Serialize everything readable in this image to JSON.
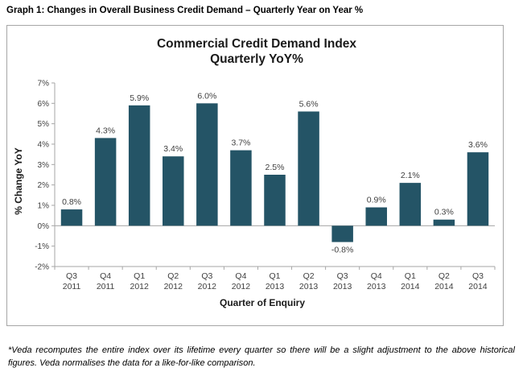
{
  "heading": "Graph 1: Changes in Overall Business Credit Demand – Quarterly Year on Year %",
  "footnote": "*Veda recomputes the entire index over its lifetime every quarter so there will be a slight adjustment to the above historical figures. Veda normalises the data for a like-for-like comparison.",
  "colors": {
    "bar": "#245466",
    "axis": "#a6a6a6",
    "text": "#404040",
    "title": "#1a1a1a"
  },
  "chart_data": {
    "type": "bar",
    "title": "Commercial Credit Demand Index",
    "subtitle": "Quarterly YoY%",
    "xlabel": "Quarter of Enquiry",
    "ylabel": "% Change YoY",
    "ylim": [
      -2,
      7
    ],
    "yticks": [
      "-2%",
      "-1%",
      "0%",
      "1%",
      "2%",
      "3%",
      "4%",
      "5%",
      "6%",
      "7%"
    ],
    "ytick_values": [
      -2,
      -1,
      0,
      1,
      2,
      3,
      4,
      5,
      6,
      7
    ],
    "grid": false,
    "legend": "none",
    "categories": [
      [
        "Q3",
        "2011"
      ],
      [
        "Q4",
        "2011"
      ],
      [
        "Q1",
        "2012"
      ],
      [
        "Q2",
        "2012"
      ],
      [
        "Q3",
        "2012"
      ],
      [
        "Q4",
        "2012"
      ],
      [
        "Q1",
        "2013"
      ],
      [
        "Q2",
        "2013"
      ],
      [
        "Q3",
        "2013"
      ],
      [
        "Q4",
        "2013"
      ],
      [
        "Q1",
        "2014"
      ],
      [
        "Q2",
        "2014"
      ],
      [
        "Q3",
        "2014"
      ]
    ],
    "values": [
      0.8,
      4.3,
      5.9,
      3.4,
      6.0,
      3.7,
      2.5,
      5.6,
      -0.8,
      0.9,
      2.1,
      0.3,
      3.6
    ],
    "data_labels": [
      "0.8%",
      "4.3%",
      "5.9%",
      "3.4%",
      "6.0%",
      "3.7%",
      "2.5%",
      "5.6%",
      "-0.8%",
      "0.9%",
      "2.1%",
      "0.3%",
      "3.6%"
    ]
  }
}
